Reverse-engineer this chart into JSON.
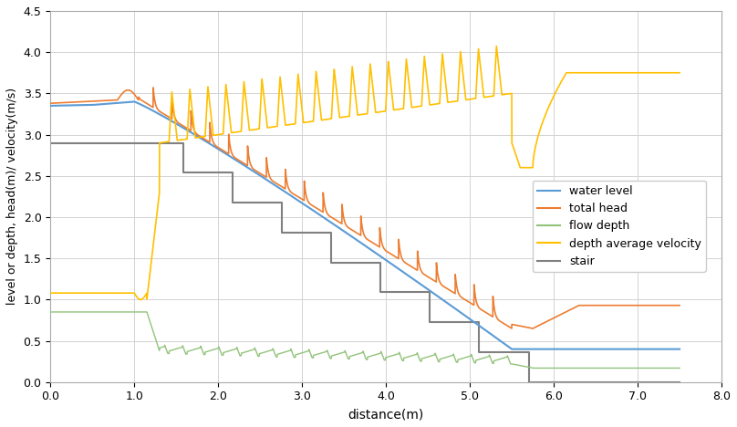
{
  "title": "",
  "xlabel": "distance(m)",
  "ylabel": "level or depth, head(m)/ velocity(m/s)",
  "xlim": [
    0.0,
    8.0
  ],
  "ylim": [
    0.0,
    4.5
  ],
  "xticks": [
    0.0,
    1.0,
    2.0,
    3.0,
    4.0,
    5.0,
    6.0,
    7.0,
    8.0
  ],
  "yticks": [
    0.0,
    0.5,
    1.0,
    1.5,
    2.0,
    2.5,
    3.0,
    3.5,
    4.0,
    4.5
  ],
  "colors": {
    "water_level": "#5b9bd5",
    "total_head": "#ed7d31",
    "flow_depth": "#92c37a",
    "velocity": "#ffc000",
    "stair": "#808080"
  },
  "legend_labels": [
    "water level",
    "total head",
    "flow depth",
    "depth average velocity",
    "stair"
  ],
  "background_color": "#ffffff",
  "grid_color": "#d3d3d3",
  "n_steps": 8,
  "stair_x_start": 1.0,
  "stair_x_end": 5.7,
  "stair_y_start": 2.9,
  "stair_y_end": 0.0
}
